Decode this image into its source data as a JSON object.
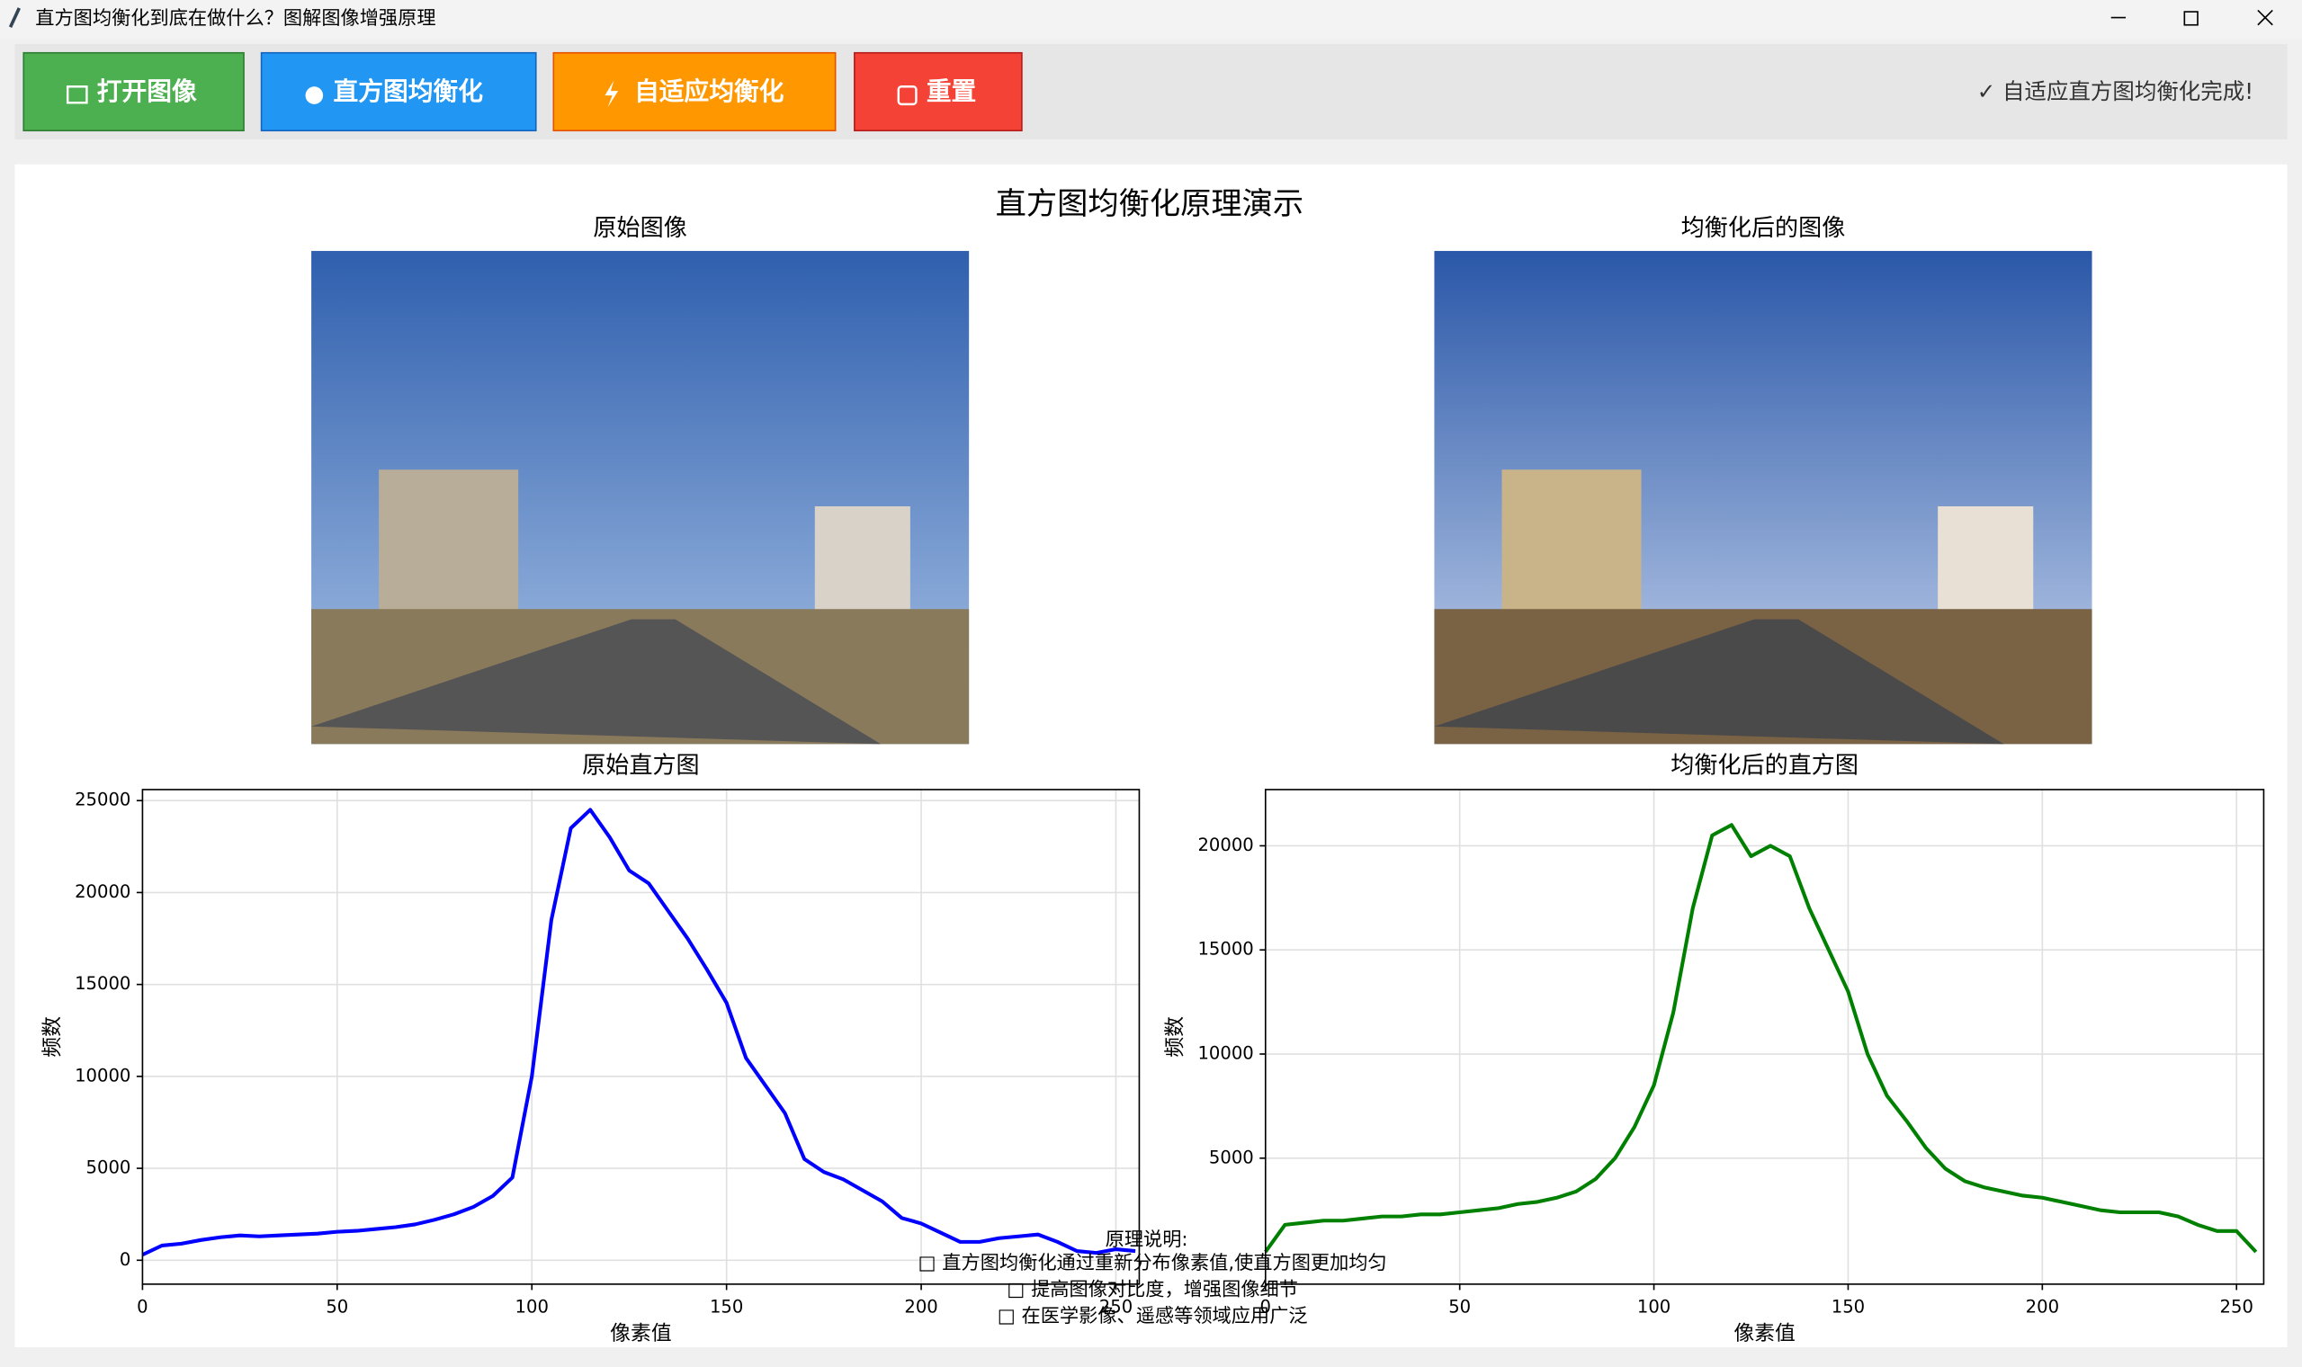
{
  "window": {
    "title": "直方图均衡化到底在做什么？图解图像增强原理"
  },
  "toolbar": {
    "buttons": [
      "打开图像",
      "直方图均衡化",
      "自适应均衡化",
      "重置"
    ],
    "status": "✓ 自适应直方图均衡化完成!"
  },
  "figure": {
    "title": "直方图均衡化原理演示",
    "image_titles": [
      "原始图像",
      "均衡化后的图像"
    ],
    "note": {
      "heading": "原理说明:",
      "lines": [
        "□ 直方图均衡化通过重新分布像素值,使直方图更加均匀",
        "□ 提高图像对比度，增强图像细节",
        "□ 在医学影像、遥感等领域应用广泛"
      ]
    }
  },
  "chart_data": [
    {
      "type": "line",
      "title": "原始直方图",
      "x_label": "像素值",
      "y_label": "频数",
      "color": "#0000ff",
      "grid": true,
      "x": [
        0,
        5,
        10,
        15,
        20,
        25,
        30,
        35,
        40,
        45,
        50,
        55,
        60,
        65,
        70,
        75,
        80,
        85,
        90,
        95,
        100,
        105,
        110,
        115,
        120,
        125,
        130,
        135,
        140,
        145,
        150,
        155,
        160,
        165,
        170,
        175,
        180,
        185,
        190,
        195,
        200,
        205,
        210,
        215,
        220,
        225,
        230,
        235,
        240,
        245,
        250,
        255
      ],
      "values": [
        300,
        800,
        900,
        1100,
        1250,
        1350,
        1300,
        1350,
        1400,
        1450,
        1550,
        1600,
        1700,
        1800,
        1950,
        2200,
        2500,
        2900,
        3500,
        4500,
        10000,
        18500,
        23500,
        24500,
        23000,
        21200,
        20500,
        19000,
        17500,
        15800,
        14000,
        11000,
        9500,
        8000,
        5500,
        4800,
        4400,
        3800,
        3200,
        2300,
        2000,
        1500,
        1000,
        1000,
        1200,
        1300,
        1400,
        1000,
        500,
        400,
        600,
        500
      ],
      "xlim": [
        0,
        256
      ],
      "ylim": [
        -1300,
        25600
      ],
      "xticks": [
        0,
        50,
        100,
        150,
        200,
        250
      ],
      "yticks": [
        0,
        5000,
        10000,
        15000,
        20000,
        25000
      ]
    },
    {
      "type": "line",
      "title": "均衡化后的直方图",
      "x_label": "像素值",
      "y_label": "频数",
      "color": "#008000",
      "grid": true,
      "x": [
        0,
        5,
        10,
        15,
        20,
        25,
        30,
        35,
        40,
        45,
        50,
        55,
        60,
        65,
        70,
        75,
        80,
        85,
        90,
        95,
        100,
        105,
        110,
        115,
        120,
        125,
        130,
        135,
        140,
        145,
        150,
        155,
        160,
        165,
        170,
        175,
        180,
        185,
        190,
        195,
        200,
        205,
        210,
        215,
        220,
        225,
        230,
        235,
        240,
        245,
        250,
        255
      ],
      "values": [
        500,
        1800,
        1900,
        2000,
        2000,
        2100,
        2200,
        2200,
        2300,
        2300,
        2400,
        2500,
        2600,
        2800,
        2900,
        3100,
        3400,
        4000,
        5000,
        6500,
        8500,
        12000,
        17000,
        20500,
        21000,
        19500,
        20000,
        19500,
        17000,
        15000,
        13000,
        10000,
        8000,
        6800,
        5500,
        4500,
        3900,
        3600,
        3400,
        3200,
        3100,
        2900,
        2700,
        2500,
        2400,
        2400,
        2400,
        2200,
        1800,
        1500,
        1500,
        500
      ],
      "xlim": [
        0,
        257
      ],
      "ylim": [
        -1050,
        22700
      ],
      "xticks": [
        0,
        50,
        100,
        150,
        200,
        250
      ],
      "yticks": [
        5000,
        10000,
        15000,
        20000
      ]
    }
  ]
}
